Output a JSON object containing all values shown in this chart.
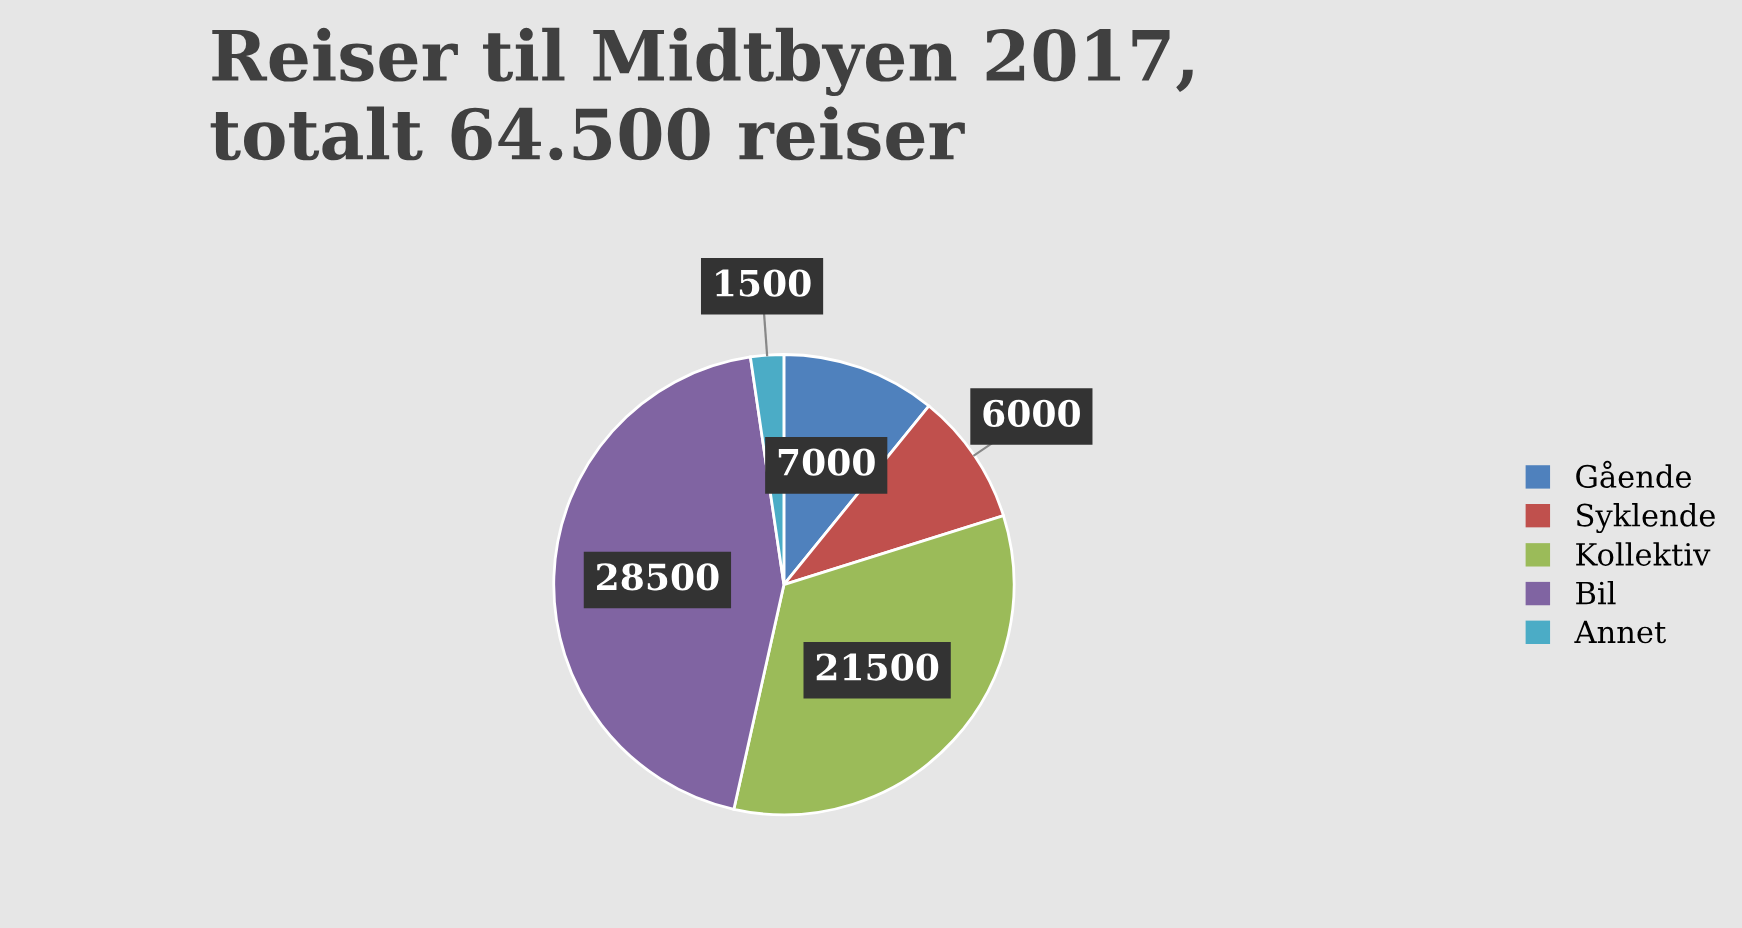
{
  "chart_data": {
    "type": "pie",
    "title": "Reiser til Midtbyen 2017,\ntotalt 64.500 reiser",
    "categories": [
      "Gående",
      "Syklende",
      "Kollektiv",
      "Bil",
      "Annet"
    ],
    "values": [
      7000,
      6000,
      21500,
      28500,
      1500
    ],
    "colors": [
      "#4f81bd",
      "#c0504d",
      "#9bbb59",
      "#8064a2",
      "#4bacc6"
    ],
    "data_labels": true,
    "legend": "right"
  }
}
